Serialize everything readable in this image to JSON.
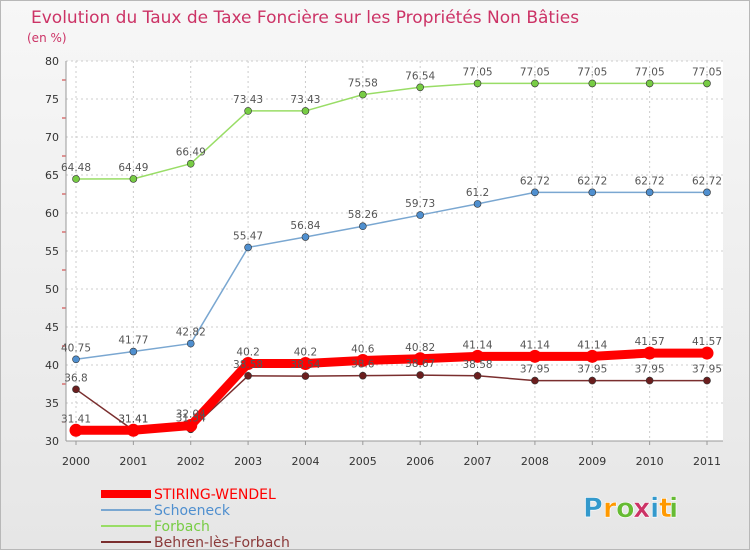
{
  "chart_data": {
    "type": "line",
    "title": "Evolution du Taux de Taxe Foncière sur les Propriétés Non Bâties",
    "subtitle": "(en %)",
    "xlabel": "",
    "ylabel": "",
    "ylim": [
      30,
      80
    ],
    "yticks": [
      30,
      35,
      40,
      45,
      50,
      55,
      60,
      65,
      70,
      75,
      80
    ],
    "categories": [
      "2000",
      "2001",
      "2002",
      "2003",
      "2004",
      "2005",
      "2006",
      "2007",
      "2008",
      "2009",
      "2010",
      "2011"
    ],
    "series": [
      {
        "name": "STIRING-WENDEL",
        "color": "#ff0000",
        "marker_color": "#ff0000",
        "values": [
          31.41,
          31.41,
          32.04,
          40.2,
          40.2,
          40.6,
          40.82,
          41.14,
          41.14,
          41.14,
          41.57,
          41.57
        ],
        "labels": [
          "31.41",
          "31.41",
          "32.04",
          "40.2",
          "40.2",
          "40.6",
          "40.82",
          "41.14",
          "41.14",
          "41.14",
          "41.57",
          "41.57"
        ]
      },
      {
        "name": "Schoeneck",
        "color": "#7aa7d1",
        "marker_color": "#4f8fcf",
        "values": [
          40.75,
          41.77,
          42.82,
          55.47,
          56.84,
          58.26,
          59.73,
          61.2,
          62.72,
          62.72,
          62.72,
          62.72
        ],
        "labels": [
          "40.75",
          "41.77",
          "42.82",
          "55.47",
          "56.84",
          "58.26",
          "59.73",
          "61.2",
          "62.72",
          "62.72",
          "62.72",
          "62.72"
        ]
      },
      {
        "name": "Forbach",
        "color": "#99dd66",
        "marker_color": "#77cc44",
        "values": [
          64.48,
          64.49,
          66.49,
          73.43,
          73.43,
          75.58,
          76.54,
          77.05,
          77.05,
          77.05,
          77.05,
          77.05
        ],
        "labels": [
          "64.48",
          "64.49",
          "66.49",
          "73.43",
          "73.43",
          "75.58",
          "76.54",
          "77.05",
          "77.05",
          "77.05",
          "77.05",
          "77.05"
        ]
      },
      {
        "name": "Behren-lès-Forbach",
        "color": "#7a2e2e",
        "marker_color": "#6b1e1e",
        "values": [
          36.8,
          31.41,
          31.54,
          38.58,
          38.54,
          38.6,
          38.67,
          38.58,
          37.95,
          37.95,
          37.95,
          37.95
        ],
        "labels": [
          "36.8",
          "31.41",
          "31.54",
          "38.58",
          "38.54",
          "38.6",
          "38.67",
          "38.58",
          "37.95",
          "37.95",
          "37.95",
          "37.95"
        ]
      }
    ]
  },
  "logo": {
    "letters": [
      "P",
      "r",
      "o",
      "x",
      "i",
      "t",
      "i"
    ],
    "colors": [
      "#3399cc",
      "#ff9900",
      "#66bb33",
      "#cc3366",
      "#3399cc",
      "#ff9900",
      "#66bb33"
    ]
  }
}
